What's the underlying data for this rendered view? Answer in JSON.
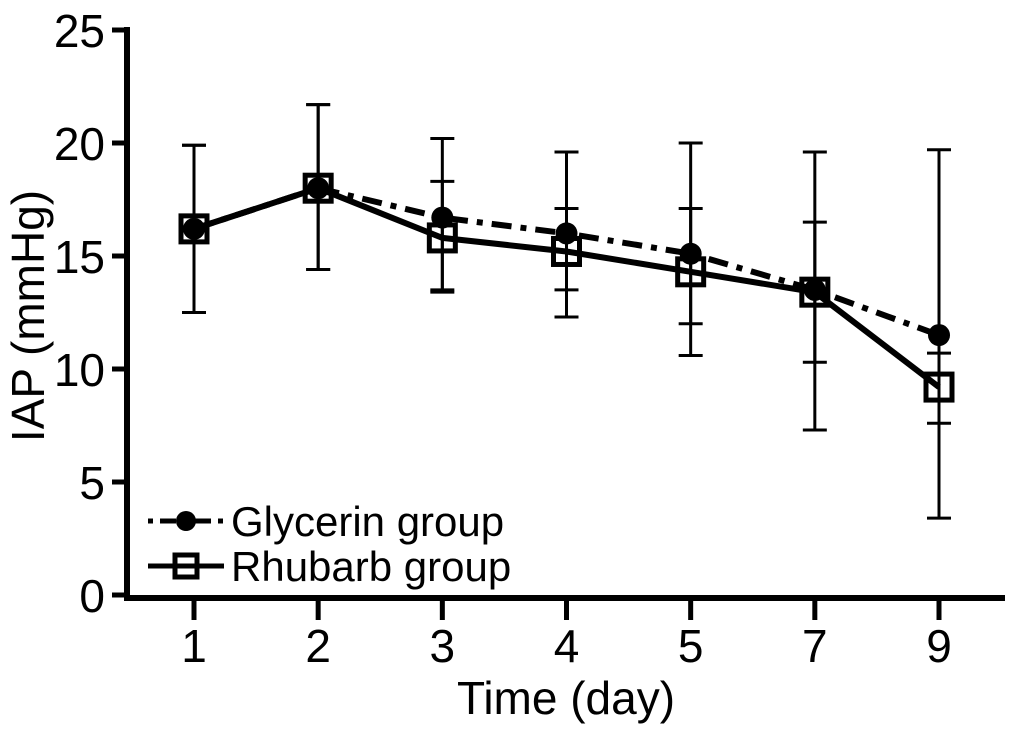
{
  "figure": {
    "background": "#ffffff",
    "ink": "#000000"
  },
  "chart_data": {
    "type": "line",
    "title": "",
    "xlabel": "Time (day)",
    "ylabel": "IAP (mmHg)",
    "x_categories": [
      "1",
      "2",
      "3",
      "4",
      "5",
      "7",
      "9"
    ],
    "ylim": [
      0,
      25
    ],
    "yticks": [
      0,
      5,
      10,
      15,
      20,
      25
    ],
    "grid": false,
    "error_bars": true,
    "legend_position": "lower-left-inside",
    "series": [
      {
        "name": "Glycerin group",
        "marker": "filled-circle",
        "line_style": "dash-dot",
        "color": "#000000",
        "values": [
          16.2,
          18.0,
          16.7,
          16.0,
          15.1,
          13.5,
          11.5
        ],
        "err_low": [
          12.5,
          14.4,
          13.4,
          12.3,
          10.6,
          7.3,
          3.4
        ],
        "err_high": [
          19.9,
          21.7,
          20.2,
          19.6,
          20.0,
          19.6,
          19.7
        ]
      },
      {
        "name": "Rhubarb group",
        "marker": "open-square",
        "line_style": "solid",
        "color": "#000000",
        "values": [
          16.2,
          18.0,
          15.8,
          15.2,
          14.3,
          13.4,
          9.2
        ],
        "err_low": [
          12.5,
          14.4,
          13.5,
          13.5,
          12.0,
          10.3,
          7.6
        ],
        "err_high": [
          19.9,
          21.7,
          18.3,
          17.1,
          17.1,
          16.5,
          10.7
        ]
      }
    ]
  }
}
